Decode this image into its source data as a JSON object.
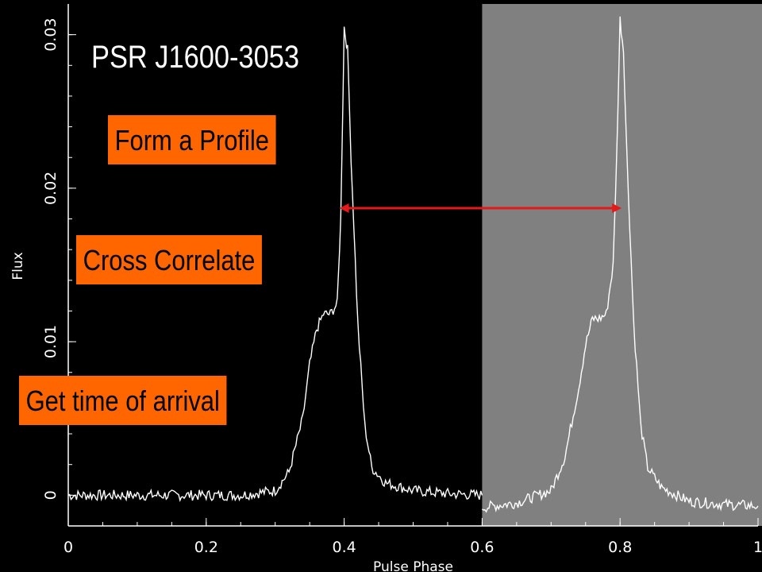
{
  "chart_data": {
    "type": "line",
    "title": "PSR J1600-3053",
    "xlabel": "Pulse Phase",
    "ylabel": "Flux",
    "xlim": [
      0,
      1
    ],
    "ylim": [
      -0.002,
      0.032
    ],
    "x_ticks": [
      "0",
      "0.2",
      "0.4",
      "0.6",
      "0.8",
      "1"
    ],
    "x_tick_values": [
      0,
      0.2,
      0.4,
      0.6,
      0.8,
      1
    ],
    "y_ticks": [
      "0",
      "0.01",
      "0.02",
      "0.03"
    ],
    "y_tick_values": [
      0,
      0.01,
      0.02,
      0.03
    ],
    "grid": false,
    "series": [
      {
        "x": [
          0.0,
          0.05,
          0.1,
          0.15,
          0.2,
          0.25,
          0.3,
          0.32,
          0.34,
          0.35,
          0.36,
          0.37,
          0.38,
          0.39,
          0.395,
          0.4,
          0.405,
          0.41,
          0.42,
          0.43,
          0.44,
          0.46,
          0.5,
          0.55,
          0.6
        ],
        "values": [
          0.0,
          0.0,
          0.0,
          0.0,
          0.0,
          0.0,
          0.0003,
          0.0015,
          0.005,
          0.0085,
          0.0108,
          0.0118,
          0.0118,
          0.0125,
          0.018,
          0.0305,
          0.029,
          0.022,
          0.011,
          0.0045,
          0.0018,
          0.0008,
          0.0003,
          0.0001,
          0.0
        ],
        "color": "#ffffff"
      },
      {
        "x": [
          0.6,
          0.65,
          0.7,
          0.72,
          0.74,
          0.75,
          0.76,
          0.77,
          0.78,
          0.79,
          0.795,
          0.8,
          0.805,
          0.81,
          0.82,
          0.83,
          0.84,
          0.86,
          0.9,
          0.95,
          1.0
        ],
        "values": [
          -0.0008,
          -0.0005,
          0.0003,
          0.0025,
          0.007,
          0.0098,
          0.0115,
          0.0115,
          0.0118,
          0.015,
          0.022,
          0.031,
          0.029,
          0.022,
          0.011,
          0.0045,
          0.0018,
          0.0005,
          -0.0004,
          -0.0006,
          -0.0007
        ],
        "color": "#ffffff"
      }
    ],
    "shaded_region": {
      "x": [
        0.6,
        1.0
      ],
      "color": "#808080"
    },
    "annotations": {
      "arrow": {
        "from_x": 0.4,
        "to_x": 0.8,
        "y": 0.0187,
        "color": "#e41a1a"
      },
      "labels": [
        "Form a Profile",
        "Cross Correlate",
        "Get time of arrival"
      ]
    }
  }
}
